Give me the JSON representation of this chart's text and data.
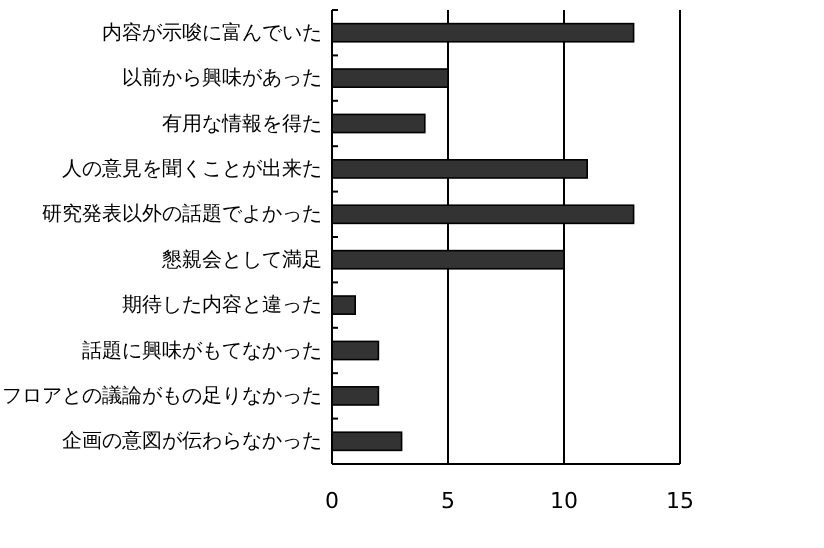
{
  "chart_data": {
    "type": "bar",
    "orientation": "horizontal",
    "categories": [
      "内容が示唆に富んでいた",
      "以前から興味があった",
      "有用な情報を得た",
      "人の意見を聞くことが出来た",
      "研究発表以外の話題でよかった",
      "懇親会として満足",
      "期待した内容と違った",
      "話題に興味がもてなかった",
      "フロアとの議論がもの足りなかった",
      "企画の意図が伝わらなかった"
    ],
    "values": [
      13,
      5,
      4,
      11,
      13,
      10,
      1,
      2,
      2,
      3
    ],
    "color": "#333333",
    "xlim": [
      0,
      15
    ],
    "xticks": [
      0,
      5,
      10,
      15
    ],
    "grid": "x"
  }
}
